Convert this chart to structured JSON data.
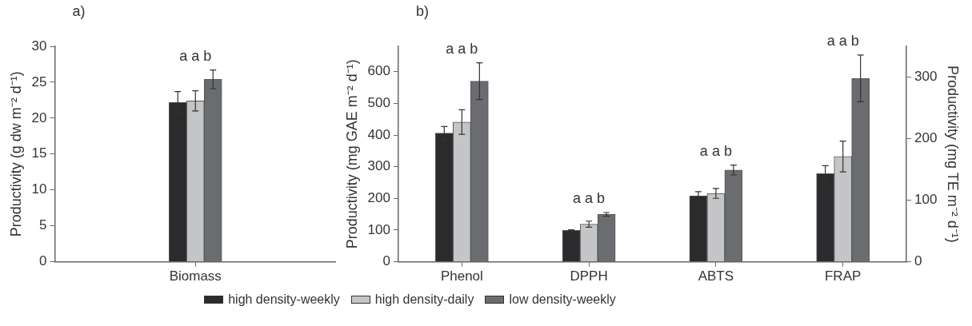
{
  "chart_data": [
    {
      "type": "bar",
      "categories": [
        "Biomass"
      ],
      "ylabel": "Productivity (g dw m⁻² d⁻¹)",
      "ylim": [
        0,
        30
      ],
      "yticks": [
        0,
        5,
        10,
        15,
        20,
        25,
        30
      ],
      "grid": false,
      "legend": false,
      "series": [
        {
          "color": "#2b2a2c",
          "values": [
            22.2
          ],
          "errors": [
            1.5
          ]
        },
        {
          "color": "#c4c5c7",
          "values": [
            22.4
          ],
          "errors": [
            1.4
          ]
        },
        {
          "color": "#6b6c70",
          "values": [
            25.4
          ],
          "errors": [
            1.3
          ]
        }
      ],
      "annotations": [
        "a)",
        "a a b"
      ]
    },
    {
      "type": "bar",
      "categories": [
        "Phenol",
        "DPPH",
        "ABTS",
        "FRAP"
      ],
      "ylabel": "Productivity (mg GAE m⁻² d⁻¹)",
      "y2label": "Productivity (mg TE m⁻² d⁻¹)",
      "ylim": [
        0,
        680
      ],
      "yticks": [
        0,
        100,
        200,
        300,
        400,
        500,
        600
      ],
      "y2lim": [
        0,
        350
      ],
      "y2ticks": [
        0,
        100,
        200,
        300
      ],
      "grid": false,
      "legend": "bottom",
      "series": [
        {
          "name": "high density-weekly",
          "color": "#2b2a2c",
          "values": [
            406,
            null,
            null,
            null
          ],
          "errors": [
            21,
            null,
            null,
            null
          ]
        },
        {
          "name": "high density-daily",
          "color": "#c4c5c7",
          "values": [
            441,
            null,
            null,
            null
          ],
          "errors": [
            39,
            null,
            null,
            null
          ]
        },
        {
          "name": "low density-weekly",
          "color": "#6b6c70",
          "values": [
            570,
            null,
            null,
            null
          ],
          "errors": [
            58,
            null,
            null,
            null
          ]
        },
        {
          "color": "#2b2a2c",
          "axis": "y2",
          "values": [
            null,
            51,
            107,
            143
          ],
          "errors": [
            null,
            1,
            7,
            13
          ]
        },
        {
          "color": "#c4c5c7",
          "axis": "y2",
          "values": [
            null,
            61,
            111,
            171
          ],
          "errors": [
            null,
            5,
            8,
            25
          ]
        },
        {
          "color": "#6b6c70",
          "axis": "y2",
          "values": [
            null,
            77,
            149,
            298
          ],
          "errors": [
            null,
            3,
            8,
            38
          ]
        }
      ],
      "annotations": [
        "b)",
        "a a b",
        "a a b",
        "a a b",
        "a a b"
      ]
    }
  ]
}
